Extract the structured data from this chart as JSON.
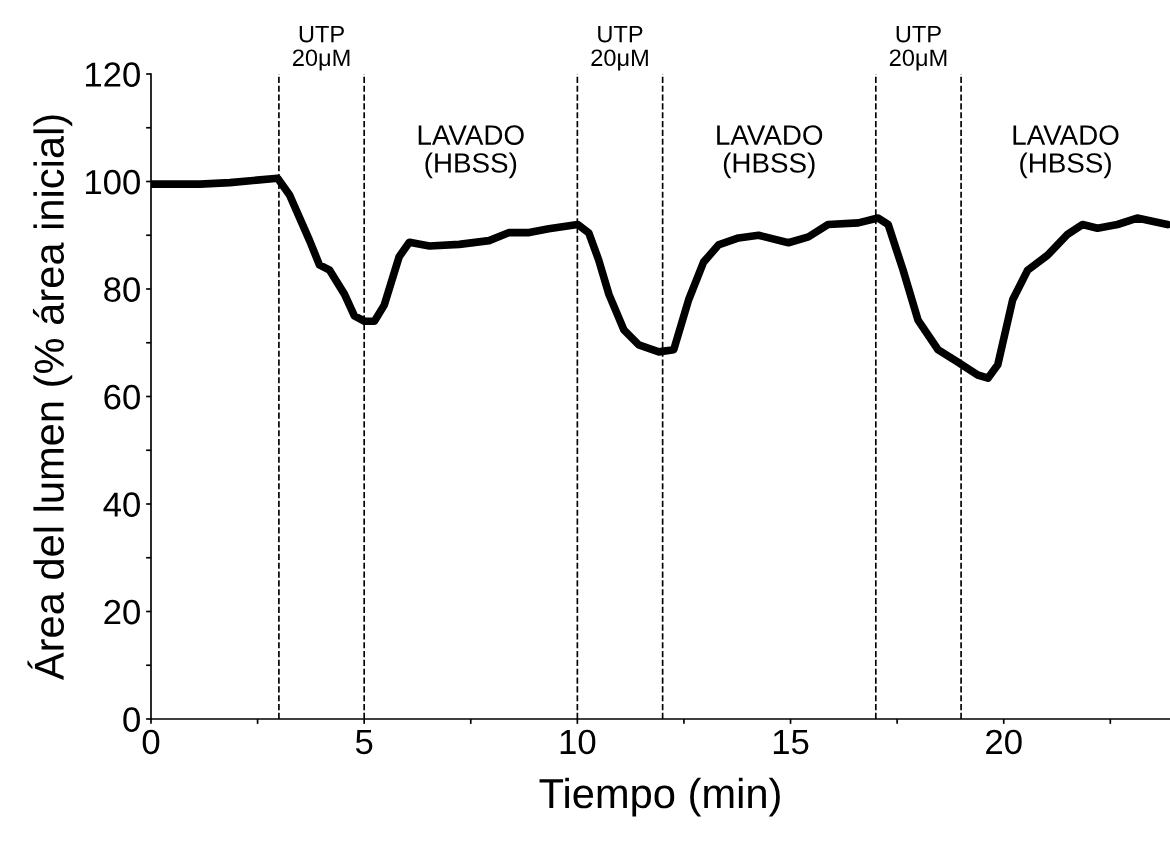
{
  "chart_data": {
    "type": "line",
    "xlabel": "Tiempo (min)",
    "ylabel": "Área del lumen (% área inicial)",
    "xlim": [
      0,
      23.9
    ],
    "ylim": [
      0,
      120
    ],
    "xticks": [
      0,
      {
        "value": 2.5,
        "label": null
      },
      5,
      {
        "value": 7.5,
        "label": null
      },
      10,
      {
        "value": 12.5,
        "label": null
      },
      15,
      {
        "value": 17.5,
        "label": null
      },
      20,
      {
        "value": 22.5,
        "label": null
      }
    ],
    "yticks": [
      0,
      {
        "value": 10,
        "label": null
      },
      20,
      {
        "value": 30,
        "label": null
      },
      40,
      {
        "value": 50,
        "label": null
      },
      60,
      {
        "value": 70,
        "label": null
      },
      80,
      {
        "value": 90,
        "label": null
      },
      100,
      {
        "value": 110,
        "label": null
      },
      120
    ],
    "grid": false,
    "marker": "none",
    "line_style": "solid",
    "series": [
      {
        "color": "#000000",
        "x": [
          0,
          1.15,
          1.85,
          2.97,
          3.25,
          3.72,
          3.95,
          4.19,
          4.54,
          4.77,
          5.01,
          5.24,
          5.47,
          5.82,
          6.06,
          6.53,
          7.23,
          7.93,
          8.4,
          8.87,
          9.33,
          10.01,
          10.27,
          10.5,
          10.74,
          11.09,
          11.44,
          11.91,
          12.26,
          12.61,
          12.96,
          13.31,
          13.78,
          14.25,
          14.95,
          15.42,
          15.88,
          16.59,
          17.05,
          17.29,
          17.64,
          17.99,
          18.46,
          18.92,
          19.39,
          19.63,
          19.86,
          20.21,
          20.56,
          21.03,
          21.5,
          21.85,
          22.2,
          22.67,
          23.13,
          23.84
        ],
        "values": [
          99.5,
          99.5,
          99.8,
          100.6,
          97.5,
          89,
          84.5,
          83.5,
          79,
          75,
          74,
          74,
          77,
          86,
          88.7,
          88,
          88.3,
          89,
          90.5,
          90.5,
          91.2,
          92,
          90.4,
          85.4,
          79,
          72.4,
          69.6,
          68.3,
          68.7,
          78,
          85,
          88.2,
          89.5,
          90,
          88.6,
          89.7,
          92,
          92.3,
          93.2,
          92,
          83.5,
          74.2,
          68.7,
          66.4,
          64,
          63.4,
          65.9,
          78,
          83.5,
          86.3,
          90.2,
          92,
          91.3,
          92,
          93.2,
          92
        ]
      }
    ],
    "ref_lines": [
      {
        "axis": "x",
        "value": 3,
        "line_style": "dashed",
        "color": "#000000"
      },
      {
        "axis": "x",
        "value": 5,
        "line_style": "dashed",
        "color": "#000000"
      },
      {
        "axis": "x",
        "value": 10,
        "line_style": "dashed",
        "color": "#000000"
      },
      {
        "axis": "x",
        "value": 12,
        "line_style": "dashed",
        "color": "#000000"
      },
      {
        "axis": "x",
        "value": 17,
        "line_style": "dashed",
        "color": "#000000"
      },
      {
        "axis": "x",
        "value": 19,
        "line_style": "dashed",
        "color": "#000000"
      }
    ],
    "annotations": [
      "UTP\n20μM",
      "LAVADO\n(HBSS)",
      "UTP\n20μM",
      "LAVADO\n(HBSS)",
      "UTP\n20μM",
      "LAVADO\n(HBSS)"
    ]
  }
}
